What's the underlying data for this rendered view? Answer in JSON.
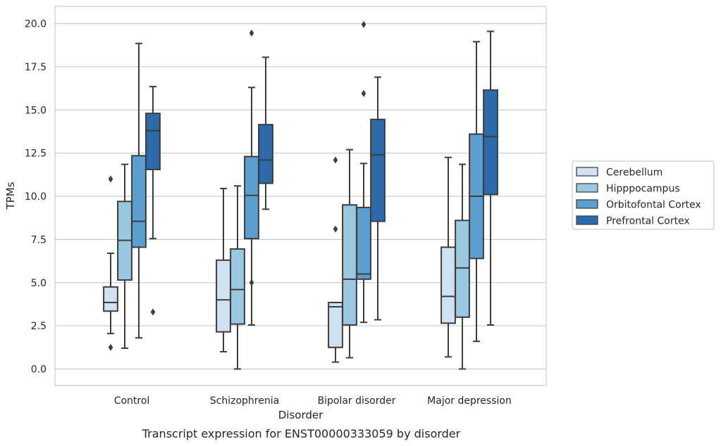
{
  "chart_data": {
    "type": "boxplot",
    "title": "Transcript expression for ENST00000333059 by disorder",
    "xlabel": "Disorder",
    "ylabel": "TPMs",
    "ylim": [
      -0.9,
      20.9
    ],
    "yticks": [
      0.0,
      2.5,
      5.0,
      7.5,
      10.0,
      12.5,
      15.0,
      17.5,
      20.0
    ],
    "ytick_labels": [
      "0.0",
      "2.5",
      "5.0",
      "7.5",
      "10.0",
      "12.5",
      "15.0",
      "17.5",
      "20.0"
    ],
    "grid": "horizontal",
    "legend_position": "outside right",
    "categories": [
      "Control",
      "Schizophrenia",
      "Bipolar disorder",
      "Major depression"
    ],
    "series": [
      {
        "name": "Cerebellum",
        "color": "#d0e1f2",
        "boxes": [
          {
            "whislo": 2.05,
            "q1": 3.35,
            "med": 3.85,
            "q3": 4.75,
            "whishi": 6.7,
            "fliers": [
              11.0,
              1.25
            ]
          },
          {
            "whislo": 1.0,
            "q1": 2.15,
            "med": 4.0,
            "q3": 6.3,
            "whishi": 10.45,
            "fliers": []
          },
          {
            "whislo": 0.4,
            "q1": 1.25,
            "med": 3.6,
            "q3": 3.85,
            "whishi": 3.85,
            "fliers": [
              12.1,
              8.1
            ]
          },
          {
            "whislo": 0.7,
            "q1": 2.65,
            "med": 4.2,
            "q3": 7.05,
            "whishi": 12.25,
            "fliers": []
          }
        ]
      },
      {
        "name": "Hipppocampus",
        "color": "#9ac8e0",
        "boxes": [
          {
            "whislo": 1.2,
            "q1": 5.15,
            "med": 7.45,
            "q3": 9.7,
            "whishi": 11.85,
            "fliers": []
          },
          {
            "whislo": 0.0,
            "q1": 2.6,
            "med": 4.6,
            "q3": 6.95,
            "whishi": 10.6,
            "fliers": []
          },
          {
            "whislo": 0.65,
            "q1": 2.55,
            "med": 5.2,
            "q3": 9.5,
            "whishi": 12.7,
            "fliers": []
          },
          {
            "whislo": 0.0,
            "q1": 3.0,
            "med": 5.85,
            "q3": 8.6,
            "whishi": 11.85,
            "fliers": []
          }
        ]
      },
      {
        "name": "Orbitofontal Cortex",
        "color": "#5a9fcf",
        "boxes": [
          {
            "whislo": 1.8,
            "q1": 7.05,
            "med": 8.55,
            "q3": 12.35,
            "whishi": 18.85,
            "fliers": []
          },
          {
            "whislo": 2.55,
            "q1": 7.55,
            "med": 10.05,
            "q3": 12.3,
            "whishi": 16.3,
            "fliers": [
              19.45,
              5.0
            ]
          },
          {
            "whislo": 2.7,
            "q1": 5.2,
            "med": 5.5,
            "q3": 9.35,
            "whishi": 11.9,
            "fliers": [
              19.95,
              15.95
            ]
          },
          {
            "whislo": 1.6,
            "q1": 6.4,
            "med": 10.0,
            "q3": 13.6,
            "whishi": 18.95,
            "fliers": []
          }
        ]
      },
      {
        "name": "Prefrontal Cortex",
        "color": "#2b6aab",
        "boxes": [
          {
            "whislo": 7.55,
            "q1": 11.55,
            "med": 13.8,
            "q3": 14.8,
            "whishi": 16.35,
            "fliers": [
              3.3
            ]
          },
          {
            "whislo": 9.25,
            "q1": 10.75,
            "med": 12.1,
            "q3": 14.15,
            "whishi": 18.05,
            "fliers": []
          },
          {
            "whislo": 2.85,
            "q1": 8.55,
            "med": 12.4,
            "q3": 14.45,
            "whishi": 16.9,
            "fliers": []
          },
          {
            "whislo": 2.55,
            "q1": 10.1,
            "med": 13.45,
            "q3": 16.15,
            "whishi": 19.55,
            "fliers": []
          }
        ]
      }
    ]
  }
}
